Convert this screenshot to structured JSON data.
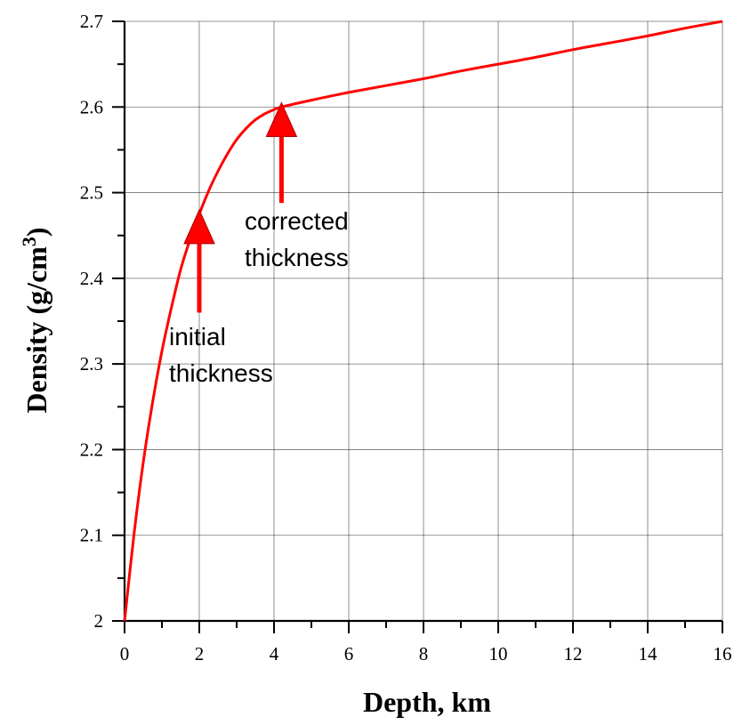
{
  "chart_data": {
    "type": "line",
    "xlabel": "Depth, km",
    "ylabel_main": "Density (g/cm",
    "ylabel_sup": "3",
    "ylabel_end": ")",
    "xlim": [
      0,
      16
    ],
    "ylim": [
      2,
      2.7
    ],
    "xticks": [
      0,
      2,
      4,
      6,
      8,
      10,
      12,
      14,
      16
    ],
    "xtick_labels": [
      "0",
      "2",
      "4",
      "6",
      "8",
      "10",
      "12",
      "14",
      "16"
    ],
    "yticks": [
      2,
      2.1,
      2.2,
      2.3,
      2.4,
      2.5,
      2.6,
      2.7
    ],
    "ytick_labels": [
      "2",
      "2.1",
      "2.2",
      "2.3",
      "2.4",
      "2.5",
      "2.6",
      "2.7"
    ],
    "grid": true,
    "series_color": "#ff0000",
    "series": [
      {
        "x": [
          0,
          0.25,
          0.5,
          0.75,
          1.0,
          1.25,
          1.5,
          1.75,
          2.0,
          2.25,
          2.5,
          2.75,
          3.0,
          3.25,
          3.5,
          3.75,
          4.0,
          4.2,
          5,
          6,
          7,
          8,
          9,
          10,
          11,
          12,
          13,
          14,
          15,
          16
        ],
        "y": [
          2.0,
          2.1,
          2.185,
          2.255,
          2.315,
          2.365,
          2.41,
          2.445,
          2.475,
          2.502,
          2.525,
          2.545,
          2.562,
          2.575,
          2.585,
          2.592,
          2.597,
          2.6,
          2.608,
          2.617,
          2.625,
          2.633,
          2.642,
          2.65,
          2.658,
          2.667,
          2.675,
          2.683,
          2.692,
          2.7
        ]
      }
    ],
    "annotations": [
      {
        "id": "initial",
        "lines": [
          "initial",
          "thickness"
        ],
        "arrow_x": 2.0,
        "arrow_tip_y": 2.48,
        "arrow_tail_y": 2.36
      },
      {
        "id": "corrected",
        "lines": [
          "corrected",
          "thickness"
        ],
        "arrow_x": 4.2,
        "arrow_tip_y": 2.605,
        "arrow_tail_y": 2.488
      }
    ]
  }
}
